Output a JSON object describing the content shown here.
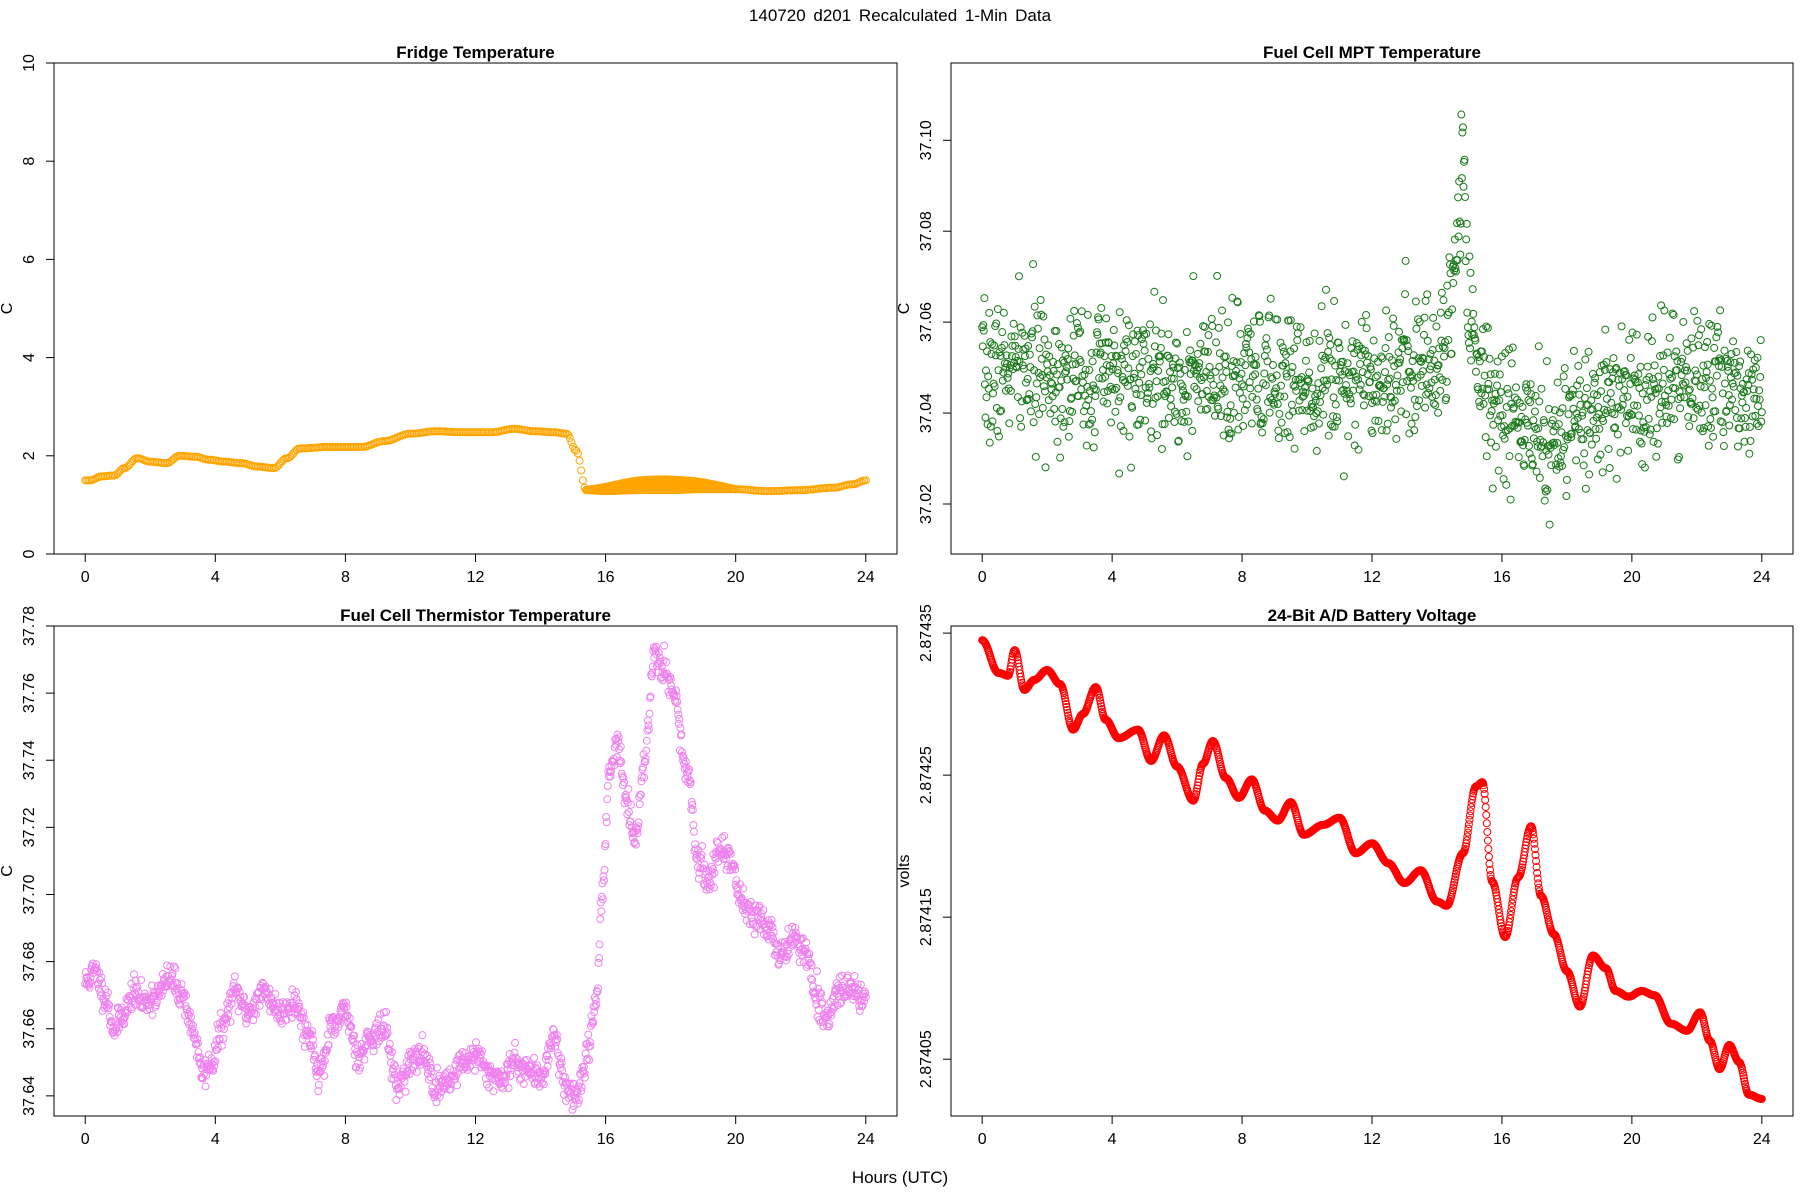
{
  "page": {
    "title": "140720   d201   Recalculated 1-Min Data",
    "x_common_label": "Hours (UTC)"
  },
  "chart_data": [
    {
      "id": "fridge",
      "type": "scatter",
      "title": "Fridge Temperature",
      "ylabel": "C",
      "xlabel": "Hours (UTC)",
      "xlim": [
        0,
        24
      ],
      "ylim": [
        0,
        10
      ],
      "xticks": [
        0,
        4,
        8,
        12,
        16,
        20,
        24
      ],
      "yticks": [
        0,
        2,
        4,
        6,
        8,
        10
      ],
      "ytick_labels": [
        "0",
        "2",
        "4",
        "6",
        "8",
        "10"
      ],
      "color": "#ffa500",
      "marker_radius": 3.5,
      "samples_per_hour": 20,
      "band": {
        "x_start": 15.4,
        "x_end": 20.0,
        "extra_max": 0.22
      },
      "points": [
        [
          0,
          1.5
        ],
        [
          0.15,
          1.5
        ],
        [
          0.5,
          1.58
        ],
        [
          0.9,
          1.6
        ],
        [
          1.2,
          1.75
        ],
        [
          1.6,
          1.95
        ],
        [
          2.0,
          1.88
        ],
        [
          2.5,
          1.85
        ],
        [
          2.9,
          2.0
        ],
        [
          3.4,
          1.98
        ],
        [
          3.8,
          1.92
        ],
        [
          4.3,
          1.88
        ],
        [
          4.8,
          1.85
        ],
        [
          5.3,
          1.78
        ],
        [
          5.8,
          1.75
        ],
        [
          6.2,
          1.95
        ],
        [
          6.6,
          2.15
        ],
        [
          7.5,
          2.18
        ],
        [
          8.5,
          2.18
        ],
        [
          9.2,
          2.3
        ],
        [
          10.0,
          2.45
        ],
        [
          10.8,
          2.5
        ],
        [
          11.5,
          2.48
        ],
        [
          12.5,
          2.48
        ],
        [
          13.2,
          2.55
        ],
        [
          13.8,
          2.5
        ],
        [
          14.4,
          2.48
        ],
        [
          14.8,
          2.45
        ],
        [
          15.1,
          2.1
        ],
        [
          15.4,
          1.3
        ],
        [
          16.0,
          1.28
        ],
        [
          17.0,
          1.3
        ],
        [
          18.0,
          1.3
        ],
        [
          19.0,
          1.32
        ],
        [
          20.0,
          1.32
        ],
        [
          21.0,
          1.28
        ],
        [
          22.0,
          1.3
        ],
        [
          23.0,
          1.35
        ],
        [
          23.6,
          1.42
        ],
        [
          24.0,
          1.5
        ]
      ]
    },
    {
      "id": "fc_mpt",
      "type": "scatter",
      "title": "Fuel Cell MPT Temperature",
      "ylabel": "C",
      "xlabel": "Hours (UTC)",
      "xlim": [
        0,
        24
      ],
      "ylim": [
        37.009,
        37.117
      ],
      "xticks": [
        0,
        4,
        8,
        12,
        16,
        20,
        24
      ],
      "yticks": [
        37.02,
        37.04,
        37.06,
        37.08,
        37.1
      ],
      "ytick_labels": [
        "37.02",
        "37.04",
        "37.06",
        "37.08",
        "37.10"
      ],
      "color": "#1a7a1a",
      "marker_radius": 3.5,
      "samples_per_hour": 60,
      "noise_seed": 7,
      "noise_sd": 0.0075,
      "noise_clip": [
        37.011,
        37.112
      ],
      "points": [
        [
          0,
          37.048
        ],
        [
          1,
          37.05
        ],
        [
          2,
          37.049
        ],
        [
          4,
          37.048
        ],
        [
          6,
          37.047
        ],
        [
          8,
          37.047
        ],
        [
          10,
          37.048
        ],
        [
          12,
          37.049
        ],
        [
          14,
          37.051
        ],
        [
          14.4,
          37.06
        ],
        [
          14.8,
          37.095
        ],
        [
          15.0,
          37.065
        ],
        [
          15.3,
          37.048
        ],
        [
          16,
          37.04
        ],
        [
          17,
          37.036
        ],
        [
          17.6,
          37.033
        ],
        [
          18.5,
          37.038
        ],
        [
          20,
          37.044
        ],
        [
          22,
          37.047
        ],
        [
          24,
          37.046
        ]
      ]
    },
    {
      "id": "fc_thermistor",
      "type": "scatter",
      "title": "Fuel Cell Thermistor Temperature",
      "ylabel": "C",
      "xlabel": "Hours (UTC)",
      "xlim": [
        0,
        24
      ],
      "ylim": [
        37.634,
        37.78
      ],
      "xticks": [
        0,
        4,
        8,
        12,
        16,
        20,
        24
      ],
      "yticks": [
        37.64,
        37.66,
        37.68,
        37.7,
        37.72,
        37.74,
        37.76,
        37.78
      ],
      "ytick_labels": [
        "37.64",
        "37.66",
        "37.68",
        "37.70",
        "37.72",
        "37.74",
        "37.76",
        "37.78"
      ],
      "color": "#ee82ee",
      "marker_radius": 3.5,
      "samples_per_hour": 60,
      "noise_seed": 11,
      "noise_sd": 0.0022,
      "points": [
        [
          0,
          37.674
        ],
        [
          0.3,
          37.677
        ],
        [
          0.6,
          37.67
        ],
        [
          0.9,
          37.66
        ],
        [
          1.2,
          37.665
        ],
        [
          1.5,
          37.671
        ],
        [
          1.8,
          37.668
        ],
        [
          2.2,
          37.67
        ],
        [
          2.6,
          37.675
        ],
        [
          3.0,
          37.67
        ],
        [
          3.3,
          37.66
        ],
        [
          3.6,
          37.647
        ],
        [
          3.9,
          37.65
        ],
        [
          4.2,
          37.66
        ],
        [
          4.6,
          37.671
        ],
        [
          5.0,
          37.665
        ],
        [
          5.5,
          37.671
        ],
        [
          6.0,
          37.665
        ],
        [
          6.4,
          37.668
        ],
        [
          6.9,
          37.658
        ],
        [
          7.2,
          37.647
        ],
        [
          7.6,
          37.66
        ],
        [
          8.0,
          37.665
        ],
        [
          8.4,
          37.652
        ],
        [
          8.8,
          37.658
        ],
        [
          9.2,
          37.66
        ],
        [
          9.6,
          37.643
        ],
        [
          10.0,
          37.65
        ],
        [
          10.4,
          37.652
        ],
        [
          10.8,
          37.642
        ],
        [
          11.2,
          37.645
        ],
        [
          11.6,
          37.65
        ],
        [
          12.0,
          37.652
        ],
        [
          12.4,
          37.647
        ],
        [
          12.8,
          37.645
        ],
        [
          13.2,
          37.65
        ],
        [
          13.6,
          37.648
        ],
        [
          14.0,
          37.645
        ],
        [
          14.4,
          37.658
        ],
        [
          14.8,
          37.642
        ],
        [
          15.1,
          37.64
        ],
        [
          15.4,
          37.65
        ],
        [
          15.7,
          37.668
        ],
        [
          15.9,
          37.7
        ],
        [
          16.1,
          37.735
        ],
        [
          16.35,
          37.746
        ],
        [
          16.6,
          37.73
        ],
        [
          16.9,
          37.715
        ],
        [
          17.2,
          37.74
        ],
        [
          17.5,
          37.772
        ],
        [
          17.8,
          37.768
        ],
        [
          18.1,
          37.76
        ],
        [
          18.5,
          37.735
        ],
        [
          18.9,
          37.708
        ],
        [
          19.2,
          37.705
        ],
        [
          19.5,
          37.713
        ],
        [
          19.8,
          37.712
        ],
        [
          20.2,
          37.698
        ],
        [
          20.6,
          37.693
        ],
        [
          21.0,
          37.69
        ],
        [
          21.4,
          37.682
        ],
        [
          21.8,
          37.687
        ],
        [
          22.2,
          37.682
        ],
        [
          22.5,
          37.667
        ],
        [
          22.8,
          37.663
        ],
        [
          23.2,
          37.672
        ],
        [
          23.6,
          37.672
        ],
        [
          24.0,
          37.668
        ]
      ]
    },
    {
      "id": "battery",
      "type": "scatter",
      "title": "24-Bit A/D Battery Voltage",
      "ylabel": "volts",
      "xlabel": "Hours (UTC)",
      "xlim": [
        0,
        24
      ],
      "ylim": [
        2.87401,
        2.874355
      ],
      "xticks": [
        0,
        4,
        8,
        12,
        16,
        20,
        24
      ],
      "yticks": [
        2.87405,
        2.87415,
        2.87425,
        2.87435
      ],
      "ytick_labels": [
        "2.87405",
        "2.87415",
        "2.87425",
        "2.87435"
      ],
      "color": "#ff0000",
      "marker_radius": 3.5,
      "samples_per_hour": 60,
      "points": [
        [
          0,
          2.874345
        ],
        [
          0.5,
          2.874322
        ],
        [
          0.8,
          2.87432
        ],
        [
          1.0,
          2.874338
        ],
        [
          1.3,
          2.87431
        ],
        [
          1.6,
          2.874317
        ],
        [
          2.0,
          2.874324
        ],
        [
          2.4,
          2.874314
        ],
        [
          2.8,
          2.874282
        ],
        [
          3.1,
          2.874293
        ],
        [
          3.5,
          2.874312
        ],
        [
          3.8,
          2.874289
        ],
        [
          4.2,
          2.874276
        ],
        [
          4.8,
          2.874282
        ],
        [
          5.2,
          2.87426
        ],
        [
          5.6,
          2.874278
        ],
        [
          6.0,
          2.874256
        ],
        [
          6.5,
          2.874232
        ],
        [
          6.8,
          2.874258
        ],
        [
          7.1,
          2.874274
        ],
        [
          7.5,
          2.874248
        ],
        [
          7.9,
          2.874234
        ],
        [
          8.3,
          2.874247
        ],
        [
          8.7,
          2.874225
        ],
        [
          9.1,
          2.874218
        ],
        [
          9.5,
          2.874231
        ],
        [
          9.9,
          2.874208
        ],
        [
          10.5,
          2.874215
        ],
        [
          11.0,
          2.87422
        ],
        [
          11.5,
          2.874195
        ],
        [
          12.0,
          2.874202
        ],
        [
          12.5,
          2.874188
        ],
        [
          13.0,
          2.874174
        ],
        [
          13.5,
          2.874183
        ],
        [
          14.0,
          2.874161
        ],
        [
          14.3,
          2.874158
        ],
        [
          14.8,
          2.874195
        ],
        [
          15.2,
          2.874242
        ],
        [
          15.4,
          2.874245
        ],
        [
          15.7,
          2.874175
        ],
        [
          16.1,
          2.874136
        ],
        [
          16.5,
          2.874178
        ],
        [
          16.9,
          2.874214
        ],
        [
          17.2,
          2.874165
        ],
        [
          17.6,
          2.874138
        ],
        [
          18.0,
          2.874112
        ],
        [
          18.4,
          2.874087
        ],
        [
          18.8,
          2.874123
        ],
        [
          19.2,
          2.874114
        ],
        [
          19.5,
          2.874098
        ],
        [
          19.9,
          2.874094
        ],
        [
          20.3,
          2.874098
        ],
        [
          20.7,
          2.874095
        ],
        [
          21.2,
          2.874075
        ],
        [
          21.7,
          2.87407
        ],
        [
          22.1,
          2.874083
        ],
        [
          22.4,
          2.874063
        ],
        [
          22.7,
          2.874043
        ],
        [
          23.0,
          2.87406
        ],
        [
          23.3,
          2.874048
        ],
        [
          23.6,
          2.874025
        ],
        [
          24.0,
          2.874022
        ]
      ]
    }
  ]
}
